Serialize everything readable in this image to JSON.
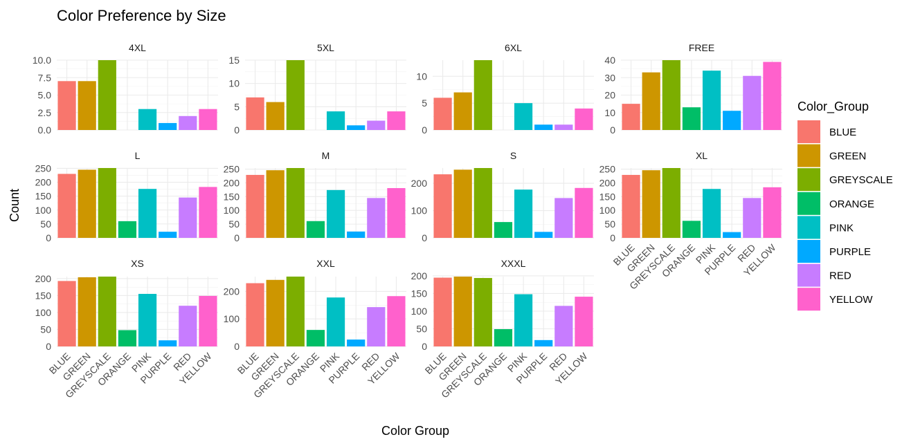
{
  "chart_data": {
    "type": "bar",
    "title": "Color Preference by Size",
    "xlabel": "Color Group",
    "ylabel": "Count",
    "legend": {
      "title": "Color_Group",
      "position": "right",
      "entries": [
        "BLUE",
        "GREEN",
        "GREYSCALE",
        "ORANGE",
        "PINK",
        "PURPLE",
        "RED",
        "YELLOW"
      ]
    },
    "categories": [
      "BLUE",
      "GREEN",
      "GREYSCALE",
      "ORANGE",
      "PINK",
      "PURPLE",
      "RED",
      "YELLOW"
    ],
    "colors": [
      "#F8766D",
      "#CD9600",
      "#7CAE00",
      "#00BE67",
      "#00BFC4",
      "#00A9FF",
      "#C77CFF",
      "#FF61CC"
    ],
    "grid": true,
    "panels": [
      {
        "name": "4XL",
        "values": [
          7,
          7,
          10,
          0,
          3,
          1,
          2,
          3
        ],
        "yticks": [
          "0.0",
          "2.5",
          "5.0",
          "7.5",
          "10.0"
        ],
        "ylim": [
          0,
          10
        ]
      },
      {
        "name": "5XL",
        "values": [
          7,
          6,
          15,
          0,
          4,
          1,
          2,
          4
        ],
        "yticks": [
          "0",
          "5",
          "10",
          "15"
        ],
        "ylim": [
          0,
          15
        ]
      },
      {
        "name": "6XL",
        "values": [
          6,
          7,
          13,
          0,
          5,
          1,
          1,
          4
        ],
        "yticks": [
          "0",
          "5",
          "10"
        ],
        "ylim": [
          0,
          13
        ]
      },
      {
        "name": "FREE",
        "values": [
          15,
          33,
          40,
          13,
          34,
          11,
          31,
          39
        ],
        "yticks": [
          "0",
          "10",
          "20",
          "30",
          "40"
        ],
        "ylim": [
          0,
          40
        ]
      },
      {
        "name": "L",
        "values": [
          230,
          245,
          251,
          60,
          176,
          22,
          145,
          183
        ],
        "yticks": [
          "0",
          "50",
          "100",
          "150",
          "200",
          "250"
        ],
        "ylim": [
          0,
          251
        ]
      },
      {
        "name": "M",
        "values": [
          229,
          246,
          254,
          61,
          174,
          23,
          145,
          181
        ],
        "yticks": [
          "0",
          "50",
          "100",
          "150",
          "200",
          "250"
        ],
        "ylim": [
          0,
          254
        ]
      },
      {
        "name": "S",
        "values": [
          233,
          250,
          256,
          58,
          177,
          22,
          146,
          183
        ],
        "yticks": [
          "0",
          "100",
          "200"
        ],
        "ylim": [
          0,
          256
        ]
      },
      {
        "name": "XL",
        "values": [
          229,
          246,
          254,
          62,
          178,
          21,
          145,
          184
        ],
        "yticks": [
          "0",
          "50",
          "100",
          "150",
          "200",
          "250"
        ],
        "ylim": [
          0,
          254
        ]
      },
      {
        "name": "XS",
        "values": [
          193,
          204,
          206,
          48,
          155,
          18,
          120,
          149
        ],
        "yticks": [
          "0",
          "50",
          "100",
          "150",
          "200"
        ],
        "ylim": [
          0,
          206
        ]
      },
      {
        "name": "XXL",
        "values": [
          230,
          242,
          254,
          60,
          178,
          25,
          143,
          183
        ],
        "yticks": [
          "0",
          "100",
          "200"
        ],
        "ylim": [
          0,
          254
        ]
      },
      {
        "name": "XXXL",
        "values": [
          195,
          198,
          194,
          49,
          148,
          18,
          115,
          141
        ],
        "yticks": [
          "0",
          "50",
          "100",
          "150",
          "200"
        ],
        "ylim": [
          0,
          198
        ]
      }
    ]
  }
}
